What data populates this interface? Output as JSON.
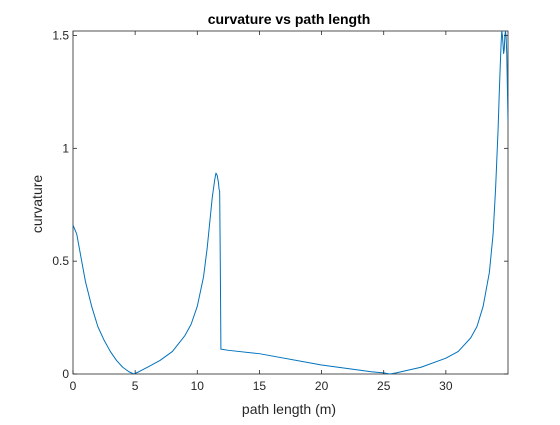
{
  "chart_data": {
    "type": "line",
    "title": "curvature vs path length",
    "xlabel": "path length (m)",
    "ylabel": "curvature",
    "xlim": [
      0,
      35
    ],
    "ylim": [
      0,
      1.52
    ],
    "xticks": [
      0,
      5,
      10,
      15,
      20,
      25,
      30
    ],
    "xtick_labels": [
      "0",
      "5",
      "10",
      "15",
      "20",
      "25",
      "30"
    ],
    "yticks": [
      0,
      0.5,
      1,
      1.5
    ],
    "ytick_labels": [
      "0",
      "0.5",
      "1",
      "1.5"
    ],
    "grid": false,
    "line_color": "#0072BD",
    "series": [
      {
        "x": [
          0,
          0.3,
          0.7,
          1.0,
          1.5,
          2.0,
          2.5,
          3.0,
          3.5,
          4.0,
          4.5,
          4.9,
          5.3,
          6.0,
          7.0,
          8.0,
          9.0,
          9.5,
          10.0,
          10.5,
          10.8,
          11.0,
          11.2,
          11.4,
          11.5,
          11.6,
          11.7,
          11.75,
          11.8,
          11.85,
          11.9,
          12.5,
          15.0,
          20.0,
          24.0,
          25.0,
          25.5,
          26.0,
          28.0,
          30.0,
          31.0,
          32.0,
          32.5,
          33.0,
          33.5,
          33.8,
          34.0,
          34.2,
          34.3,
          34.4,
          34.45,
          34.5,
          34.55,
          34.6,
          34.65,
          34.7,
          34.75,
          34.8,
          34.85,
          34.9,
          35.0
        ],
        "y": [
          0.66,
          0.62,
          0.5,
          0.41,
          0.3,
          0.21,
          0.15,
          0.1,
          0.06,
          0.03,
          0.01,
          0.0,
          0.01,
          0.03,
          0.06,
          0.1,
          0.17,
          0.22,
          0.3,
          0.43,
          0.56,
          0.67,
          0.78,
          0.86,
          0.89,
          0.88,
          0.85,
          0.82,
          0.81,
          0.5,
          0.11,
          0.105,
          0.09,
          0.04,
          0.01,
          0.005,
          0.0,
          0.005,
          0.03,
          0.07,
          0.1,
          0.16,
          0.21,
          0.3,
          0.45,
          0.62,
          0.82,
          1.08,
          1.25,
          1.4,
          1.47,
          1.52,
          1.5,
          1.46,
          1.42,
          1.44,
          1.5,
          1.52,
          1.49,
          1.42,
          1.12
        ]
      }
    ]
  }
}
